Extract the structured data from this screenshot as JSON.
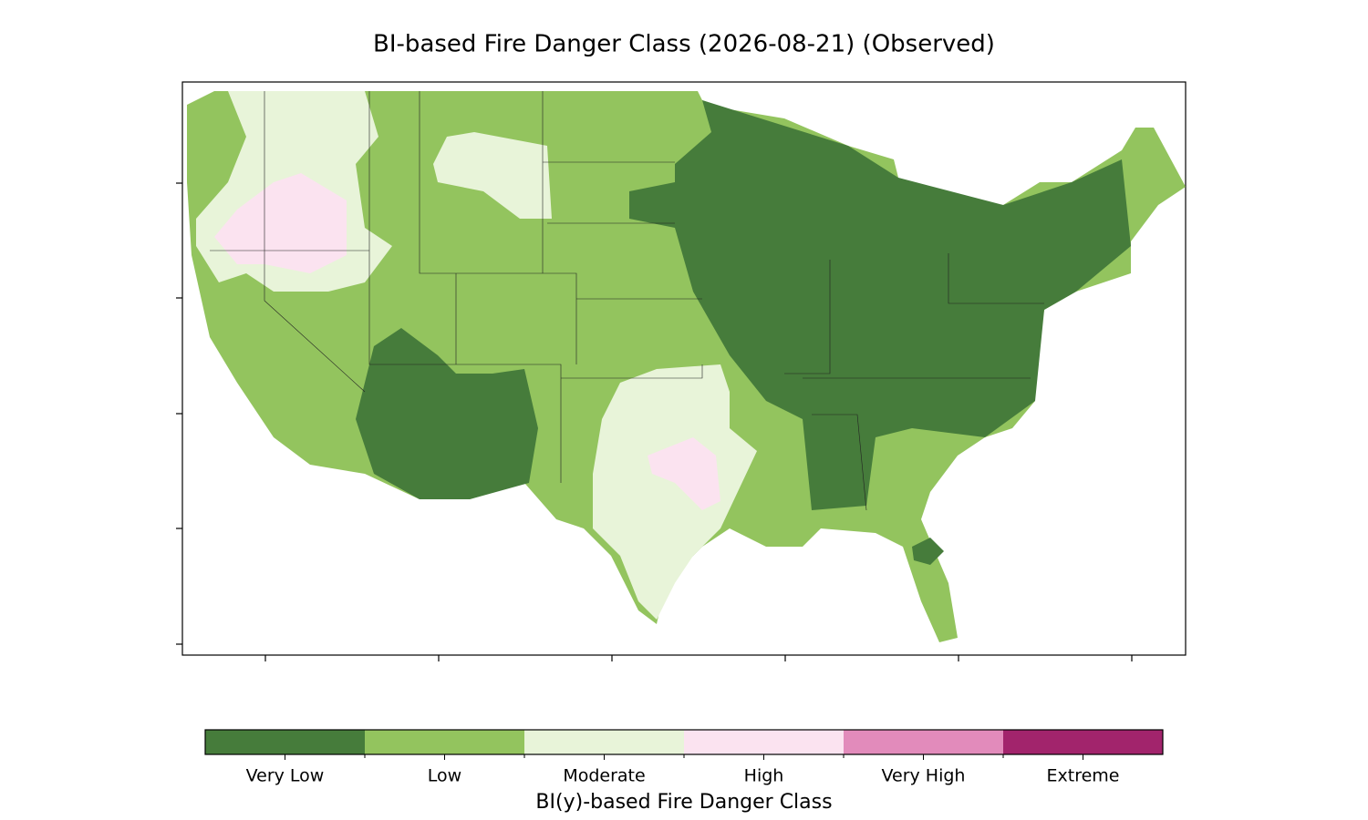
{
  "title": "BI-based Fire Danger Class (2026-08-21) (Observed)",
  "legend": {
    "title": "BI(y)-based Fire Danger Class",
    "classes": [
      {
        "label": "Very Low",
        "color": "#467c3b"
      },
      {
        "label": "Low",
        "color": "#93c45e"
      },
      {
        "label": "Moderate",
        "color": "#e8f4d9"
      },
      {
        "label": "High",
        "color": "#fbe3f0"
      },
      {
        "label": "Very High",
        "color": "#e28bbb"
      },
      {
        "label": "Extreme",
        "color": "#a2246c"
      }
    ]
  }
}
